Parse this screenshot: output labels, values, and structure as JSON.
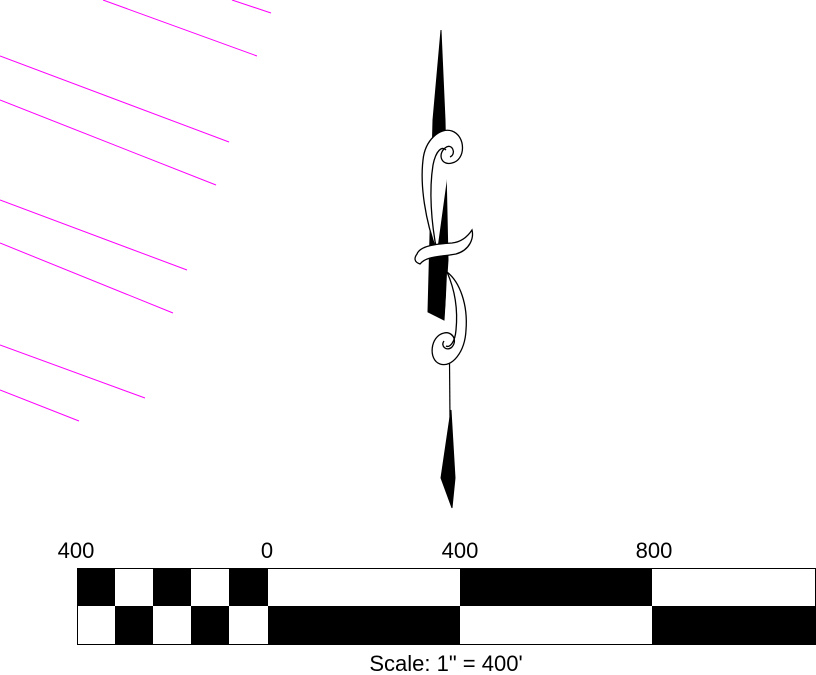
{
  "colors": {
    "background": "#ffffff",
    "ink": "#000000",
    "hatch": "#ff00ff"
  },
  "icons": {
    "north_arrow": "north-arrow-icon"
  },
  "scale_bar": {
    "tick_labels": [
      "400",
      "0",
      "400",
      "800"
    ],
    "caption": "Scale: 1\" = 400'"
  }
}
